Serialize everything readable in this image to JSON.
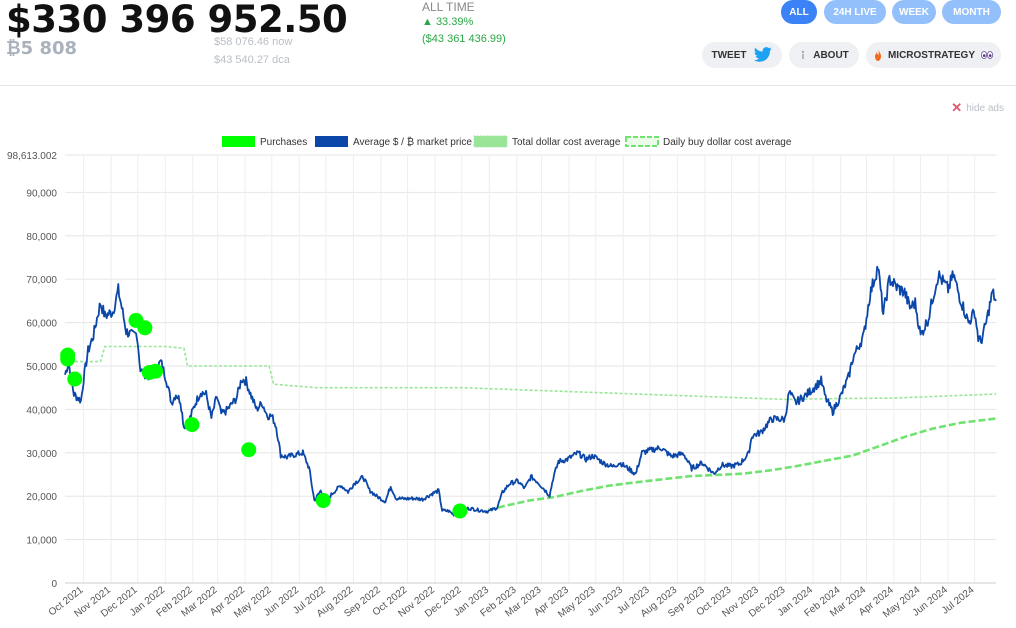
{
  "summary": {
    "total_value": "$330 396 952.50",
    "btc_amount": "₿5 808",
    "price_now": "$58 076.46 now",
    "price_dca": "$43 540.27 dca",
    "alltime_label": "ALL TIME",
    "alltime_pct": "▲ 33.39%",
    "alltime_usd": "($43 361 436.99)"
  },
  "range_buttons": {
    "all": "ALL",
    "h24": "24H LIVE",
    "week": "WEEK",
    "month": "MONTH"
  },
  "actions": {
    "tweet": "TWEET",
    "about": "ABOUT",
    "micro": "MICROSTRATEGY"
  },
  "hide_ads": "hide ads",
  "colors": {
    "market": "#0b47a8",
    "dca": "#98e598",
    "daily": "#6fe36f",
    "purchase": "#00ff00",
    "active": "#3b82f6",
    "inactive": "#93c0fb"
  },
  "chart_data": {
    "type": "line",
    "legend": [
      "Purchases",
      "Average $ / ₿ market price",
      "Total dollar cost average",
      "Daily buy dollar cost average"
    ],
    "legend_position": "top",
    "grid": true,
    "y_top_label": "98,613.002",
    "ylim": [
      0,
      98613.002
    ],
    "y_ticks": [
      0,
      10000,
      20000,
      30000,
      40000,
      50000,
      60000,
      70000,
      80000,
      90000
    ],
    "y_tick_labels": [
      "0",
      "10,000",
      "20,000",
      "30,000",
      "40,000",
      "50,000",
      "60,000",
      "70,000",
      "80,000",
      "90,000"
    ],
    "xlim": [
      "2021-09-10",
      "2024-07-25"
    ],
    "x_ticks": [
      "2021-10-01",
      "2021-11-01",
      "2021-12-01",
      "2022-01-01",
      "2022-02-01",
      "2022-03-01",
      "2022-04-01",
      "2022-05-01",
      "2022-06-01",
      "2022-07-01",
      "2022-08-01",
      "2022-09-01",
      "2022-10-01",
      "2022-11-01",
      "2022-12-01",
      "2023-01-01",
      "2023-02-01",
      "2023-03-01",
      "2023-04-01",
      "2023-05-01",
      "2023-06-01",
      "2023-07-01",
      "2023-08-01",
      "2023-09-01",
      "2023-10-01",
      "2023-11-01",
      "2023-12-01",
      "2024-01-01",
      "2024-02-01",
      "2024-03-01",
      "2024-04-01",
      "2024-05-01",
      "2024-06-01",
      "2024-07-01"
    ],
    "x_tick_labels": [
      "Oct 2021",
      "Nov 2021",
      "Dec 2021",
      "Jan 2022",
      "Feb 2022",
      "Mar 2022",
      "Apr 2022",
      "May 2022",
      "Jun 2022",
      "Jul 2022",
      "Aug 2022",
      "Sep 2022",
      "Oct 2022",
      "Nov 2022",
      "Dec 2022",
      "Jan 2023",
      "Feb 2023",
      "Mar 2023",
      "Apr 2023",
      "May 2023",
      "Jun 2023",
      "Jul 2023",
      "Aug 2023",
      "Sep 2023",
      "Oct 2023",
      "Nov 2023",
      "Dec 2023",
      "Jan 2024",
      "Feb 2024",
      "Mar 2024",
      "Apr 2024",
      "May 2024",
      "Jun 2024",
      "Jul 2024"
    ],
    "market_price": [
      [
        "2021-09-10",
        48000
      ],
      [
        "2021-09-14",
        51000
      ],
      [
        "2021-09-20",
        43500
      ],
      [
        "2021-09-28",
        42000
      ],
      [
        "2021-10-01",
        47000
      ],
      [
        "2021-10-06",
        53500
      ],
      [
        "2021-10-12",
        57000
      ],
      [
        "2021-10-16",
        61000
      ],
      [
        "2021-10-20",
        64500
      ],
      [
        "2021-10-25",
        61500
      ],
      [
        "2021-10-29",
        62000
      ],
      [
        "2021-11-03",
        62500
      ],
      [
        "2021-11-09",
        67500
      ],
      [
        "2021-11-12",
        64500
      ],
      [
        "2021-11-18",
        58000
      ],
      [
        "2021-11-25",
        57000
      ],
      [
        "2021-11-30",
        57500
      ],
      [
        "2021-12-04",
        49000
      ],
      [
        "2021-12-10",
        48000
      ],
      [
        "2021-12-16",
        47500
      ],
      [
        "2021-12-22",
        49500
      ],
      [
        "2021-12-27",
        51000
      ],
      [
        "2022-01-02",
        47000
      ],
      [
        "2022-01-08",
        41500
      ],
      [
        "2022-01-13",
        43500
      ],
      [
        "2022-01-18",
        42000
      ],
      [
        "2022-01-22",
        36000
      ],
      [
        "2022-01-28",
        37500
      ],
      [
        "2022-02-04",
        41500
      ],
      [
        "2022-02-10",
        44000
      ],
      [
        "2022-02-16",
        43500
      ],
      [
        "2022-02-22",
        38000
      ],
      [
        "2022-02-28",
        43000
      ],
      [
        "2022-03-05",
        39000
      ],
      [
        "2022-03-10",
        39500
      ],
      [
        "2022-03-16",
        41000
      ],
      [
        "2022-03-22",
        42500
      ],
      [
        "2022-03-28",
        47000
      ],
      [
        "2022-04-02",
        46500
      ],
      [
        "2022-04-08",
        43000
      ],
      [
        "2022-04-14",
        40000
      ],
      [
        "2022-04-20",
        41500
      ],
      [
        "2022-04-26",
        38500
      ],
      [
        "2022-05-01",
        38500
      ],
      [
        "2022-05-06",
        36000
      ],
      [
        "2022-05-11",
        29500
      ],
      [
        "2022-05-18",
        29000
      ],
      [
        "2022-05-26",
        29500
      ],
      [
        "2022-06-05",
        30000
      ],
      [
        "2022-06-12",
        26500
      ],
      [
        "2022-06-18",
        19000
      ],
      [
        "2022-06-25",
        21200
      ],
      [
        "2022-07-02",
        19200
      ],
      [
        "2022-07-10",
        21000
      ],
      [
        "2022-07-18",
        22500
      ],
      [
        "2022-07-26",
        21000
      ],
      [
        "2022-08-02",
        23000
      ],
      [
        "2022-08-12",
        24400
      ],
      [
        "2022-08-19",
        21400
      ],
      [
        "2022-08-27",
        20000
      ],
      [
        "2022-09-06",
        18800
      ],
      [
        "2022-09-12",
        22300
      ],
      [
        "2022-09-18",
        19500
      ],
      [
        "2022-09-28",
        19400
      ],
      [
        "2022-10-08",
        19500
      ],
      [
        "2022-10-18",
        19300
      ],
      [
        "2022-10-28",
        20500
      ],
      [
        "2022-11-05",
        21300
      ],
      [
        "2022-11-09",
        16700
      ],
      [
        "2022-11-16",
        16600
      ],
      [
        "2022-11-22",
        15800
      ],
      [
        "2022-12-01",
        17000
      ],
      [
        "2022-12-10",
        17200
      ],
      [
        "2022-12-20",
        16800
      ],
      [
        "2022-12-31",
        16500
      ],
      [
        "2023-01-10",
        17400
      ],
      [
        "2023-01-16",
        20900
      ],
      [
        "2023-01-24",
        22900
      ],
      [
        "2023-02-02",
        23500
      ],
      [
        "2023-02-10",
        21800
      ],
      [
        "2023-02-17",
        24500
      ],
      [
        "2023-02-25",
        23200
      ],
      [
        "2023-03-10",
        20200
      ],
      [
        "2023-03-14",
        24100
      ],
      [
        "2023-03-20",
        28000
      ],
      [
        "2023-03-30",
        28500
      ],
      [
        "2023-04-11",
        30000
      ],
      [
        "2023-04-20",
        28500
      ],
      [
        "2023-04-28",
        29300
      ],
      [
        "2023-05-10",
        27600
      ],
      [
        "2023-05-20",
        26800
      ],
      [
        "2023-05-28",
        27700
      ],
      [
        "2023-06-10",
        25900
      ],
      [
        "2023-06-15",
        25100
      ],
      [
        "2023-06-22",
        30000
      ],
      [
        "2023-06-30",
        30500
      ],
      [
        "2023-07-13",
        31200
      ],
      [
        "2023-07-25",
        29200
      ],
      [
        "2023-08-08",
        29800
      ],
      [
        "2023-08-17",
        26400
      ],
      [
        "2023-08-29",
        27700
      ],
      [
        "2023-09-11",
        25200
      ],
      [
        "2023-09-20",
        27200
      ],
      [
        "2023-09-30",
        26900
      ],
      [
        "2023-10-10",
        27400
      ],
      [
        "2023-10-20",
        29700
      ],
      [
        "2023-10-24",
        33900
      ],
      [
        "2023-11-03",
        34700
      ],
      [
        "2023-11-15",
        37800
      ],
      [
        "2023-11-30",
        37700
      ],
      [
        "2023-12-05",
        44000
      ],
      [
        "2023-12-12",
        41500
      ],
      [
        "2023-12-25",
        43500
      ],
      [
        "2024-01-10",
        46600
      ],
      [
        "2024-01-15",
        42600
      ],
      [
        "2024-01-23",
        39500
      ],
      [
        "2024-02-01",
        43000
      ],
      [
        "2024-02-10",
        47500
      ],
      [
        "2024-02-15",
        52000
      ],
      [
        "2024-02-27",
        57000
      ],
      [
        "2024-03-05",
        66500
      ],
      [
        "2024-03-14",
        73000
      ],
      [
        "2024-03-20",
        62000
      ],
      [
        "2024-03-27",
        70000
      ],
      [
        "2024-04-05",
        68000
      ],
      [
        "2024-04-13",
        67000
      ],
      [
        "2024-04-19",
        63500
      ],
      [
        "2024-04-25",
        64500
      ],
      [
        "2024-05-01",
        57000
      ],
      [
        "2024-05-10",
        61000
      ],
      [
        "2024-05-15",
        66000
      ],
      [
        "2024-05-21",
        71000
      ],
      [
        "2024-06-01",
        67700
      ],
      [
        "2024-06-07",
        71000
      ],
      [
        "2024-06-14",
        66000
      ],
      [
        "2024-06-24",
        60000
      ],
      [
        "2024-07-01",
        62500
      ],
      [
        "2024-07-05",
        56500
      ],
      [
        "2024-07-08",
        55500
      ],
      [
        "2024-07-14",
        60000
      ],
      [
        "2024-07-21",
        67000
      ],
      [
        "2024-07-25",
        65000
      ]
    ],
    "total_dca": [
      [
        "2021-09-10",
        51000
      ],
      [
        "2021-10-20",
        51000
      ],
      [
        "2021-10-25",
        54500
      ],
      [
        "2021-12-31",
        54500
      ],
      [
        "2022-01-22",
        54100
      ],
      [
        "2022-01-26",
        50000
      ],
      [
        "2022-04-28",
        50000
      ],
      [
        "2022-05-03",
        45800
      ],
      [
        "2022-06-20",
        45000
      ],
      [
        "2022-12-01",
        45000
      ],
      [
        "2023-12-01",
        42300
      ],
      [
        "2024-02-01",
        42500
      ],
      [
        "2024-04-01",
        42600
      ],
      [
        "2024-07-25",
        43540
      ]
    ],
    "daily_dca": [
      [
        "2022-12-31",
        16800
      ],
      [
        "2023-01-15",
        17600
      ],
      [
        "2023-02-15",
        19000
      ],
      [
        "2023-03-15",
        19800
      ],
      [
        "2023-04-15",
        21200
      ],
      [
        "2023-05-15",
        22400
      ],
      [
        "2023-06-15",
        23200
      ],
      [
        "2023-07-15",
        23900
      ],
      [
        "2023-08-15",
        24600
      ],
      [
        "2023-09-15",
        24900
      ],
      [
        "2023-10-15",
        25200
      ],
      [
        "2023-11-15",
        26000
      ],
      [
        "2023-12-15",
        27000
      ],
      [
        "2024-01-15",
        28200
      ],
      [
        "2024-02-15",
        29400
      ],
      [
        "2024-03-15",
        31500
      ],
      [
        "2024-04-15",
        33800
      ],
      [
        "2024-05-15",
        35600
      ],
      [
        "2024-06-15",
        36900
      ],
      [
        "2024-07-25",
        37900
      ]
    ],
    "purchases": [
      [
        "2021-09-13",
        52500
      ],
      [
        "2021-09-21",
        47000
      ],
      [
        "2021-11-29",
        60500
      ],
      [
        "2021-12-09",
        58800
      ],
      [
        "2021-12-14",
        48500
      ],
      [
        "2021-12-21",
        48800
      ],
      [
        "2022-01-31",
        36500
      ],
      [
        "2022-04-05",
        30700
      ],
      [
        "2022-06-28",
        19000
      ],
      [
        "2022-11-29",
        16600
      ],
      [
        "2021-09-13",
        51600
      ]
    ]
  }
}
